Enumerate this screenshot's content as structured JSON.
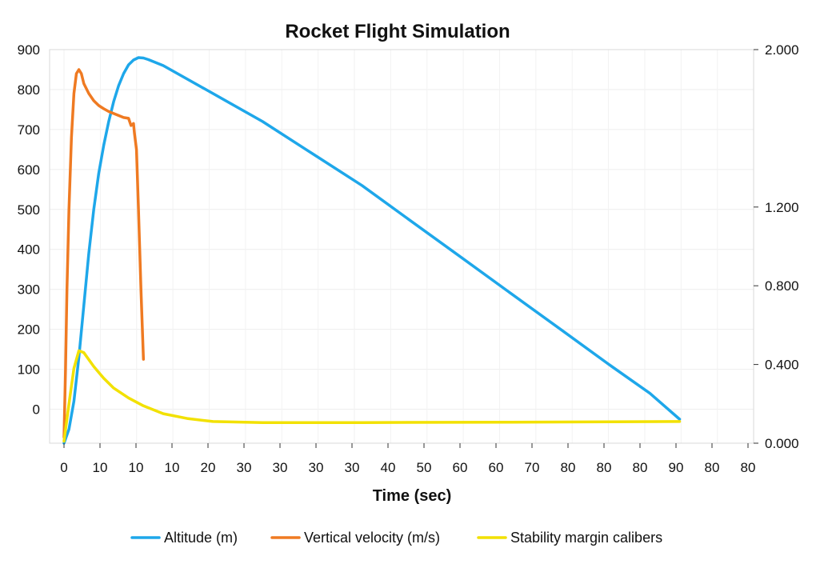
{
  "chart_data": {
    "type": "line",
    "title": "Rocket Flight Simulation",
    "xlabel": "Time (sec)",
    "ylabel": "",
    "y2label": "",
    "x_tick_labels": [
      "0",
      "10",
      "10",
      "10",
      "20",
      "30",
      "30",
      "30",
      "30",
      "40",
      "50",
      "60",
      "60",
      "70",
      "80",
      "80",
      "80",
      "90",
      "80",
      "80"
    ],
    "ylim": [
      -85,
      900
    ],
    "y_ticks": [
      0,
      100,
      200,
      300,
      400,
      500,
      600,
      700,
      800,
      900
    ],
    "y_tick_labels": [
      "0",
      "100",
      "200",
      "300",
      "400",
      "500",
      "600",
      "700",
      "800",
      "900"
    ],
    "y2lim": [
      0,
      2
    ],
    "y2_ticks": [
      0,
      0.4,
      0.8,
      1.2,
      2.0
    ],
    "y2_tick_labels": [
      "0.000",
      "0.400",
      "0.800",
      "1.200",
      "2.000"
    ],
    "grid": true,
    "legend_position": "bottom",
    "series": [
      {
        "name": "Altitude (m)",
        "color": "#1ea7ea",
        "axis": "left",
        "points": [
          [
            0,
            -85
          ],
          [
            1,
            -50
          ],
          [
            2,
            20
          ],
          [
            3,
            130
          ],
          [
            4,
            260
          ],
          [
            5,
            390
          ],
          [
            6,
            500
          ],
          [
            7,
            590
          ],
          [
            8,
            660
          ],
          [
            9,
            720
          ],
          [
            10,
            770
          ],
          [
            11,
            810
          ],
          [
            12,
            840
          ],
          [
            13,
            862
          ],
          [
            14,
            874
          ],
          [
            15,
            880
          ],
          [
            16,
            879
          ],
          [
            17,
            875
          ],
          [
            18,
            870
          ],
          [
            20,
            860
          ],
          [
            30,
            790
          ],
          [
            40,
            720
          ],
          [
            50,
            640
          ],
          [
            60,
            560
          ],
          [
            70,
            470
          ],
          [
            80,
            380
          ],
          [
            90,
            290
          ],
          [
            100,
            200
          ],
          [
            110,
            110
          ],
          [
            118,
            40
          ],
          [
            124,
            -25
          ]
        ]
      },
      {
        "name": "Vertical velocity (m/s)",
        "color": "#ef7a22",
        "axis": "left",
        "points": [
          [
            0,
            -70
          ],
          [
            0.3,
            100
          ],
          [
            0.6,
            300
          ],
          [
            1.0,
            500
          ],
          [
            1.5,
            680
          ],
          [
            2.0,
            790
          ],
          [
            2.5,
            840
          ],
          [
            3.0,
            850
          ],
          [
            3.5,
            840
          ],
          [
            4.0,
            815
          ],
          [
            5.0,
            790
          ],
          [
            6.0,
            772
          ],
          [
            7.0,
            760
          ],
          [
            8.0,
            752
          ],
          [
            9.0,
            745
          ],
          [
            10.0,
            740
          ],
          [
            11.0,
            735
          ],
          [
            12.0,
            730
          ],
          [
            13.0,
            728
          ],
          [
            13.5,
            710
          ],
          [
            14.0,
            715
          ],
          [
            14.2,
            690
          ],
          [
            14.6,
            650
          ],
          [
            15.0,
            500
          ],
          [
            15.5,
            300
          ],
          [
            16.0,
            125
          ]
        ]
      },
      {
        "name": "Stability margin calibers",
        "color": "#f2e100",
        "axis": "right",
        "points": [
          [
            0,
            0.01
          ],
          [
            1,
            0.2
          ],
          [
            2,
            0.38
          ],
          [
            3,
            0.47
          ],
          [
            4,
            0.46
          ],
          [
            6,
            0.39
          ],
          [
            8,
            0.33
          ],
          [
            10,
            0.28
          ],
          [
            13,
            0.23
          ],
          [
            16,
            0.19
          ],
          [
            20,
            0.15
          ],
          [
            25,
            0.125
          ],
          [
            30,
            0.11
          ],
          [
            40,
            0.105
          ],
          [
            60,
            0.105
          ],
          [
            90,
            0.107
          ],
          [
            124,
            0.11
          ]
        ]
      }
    ]
  }
}
